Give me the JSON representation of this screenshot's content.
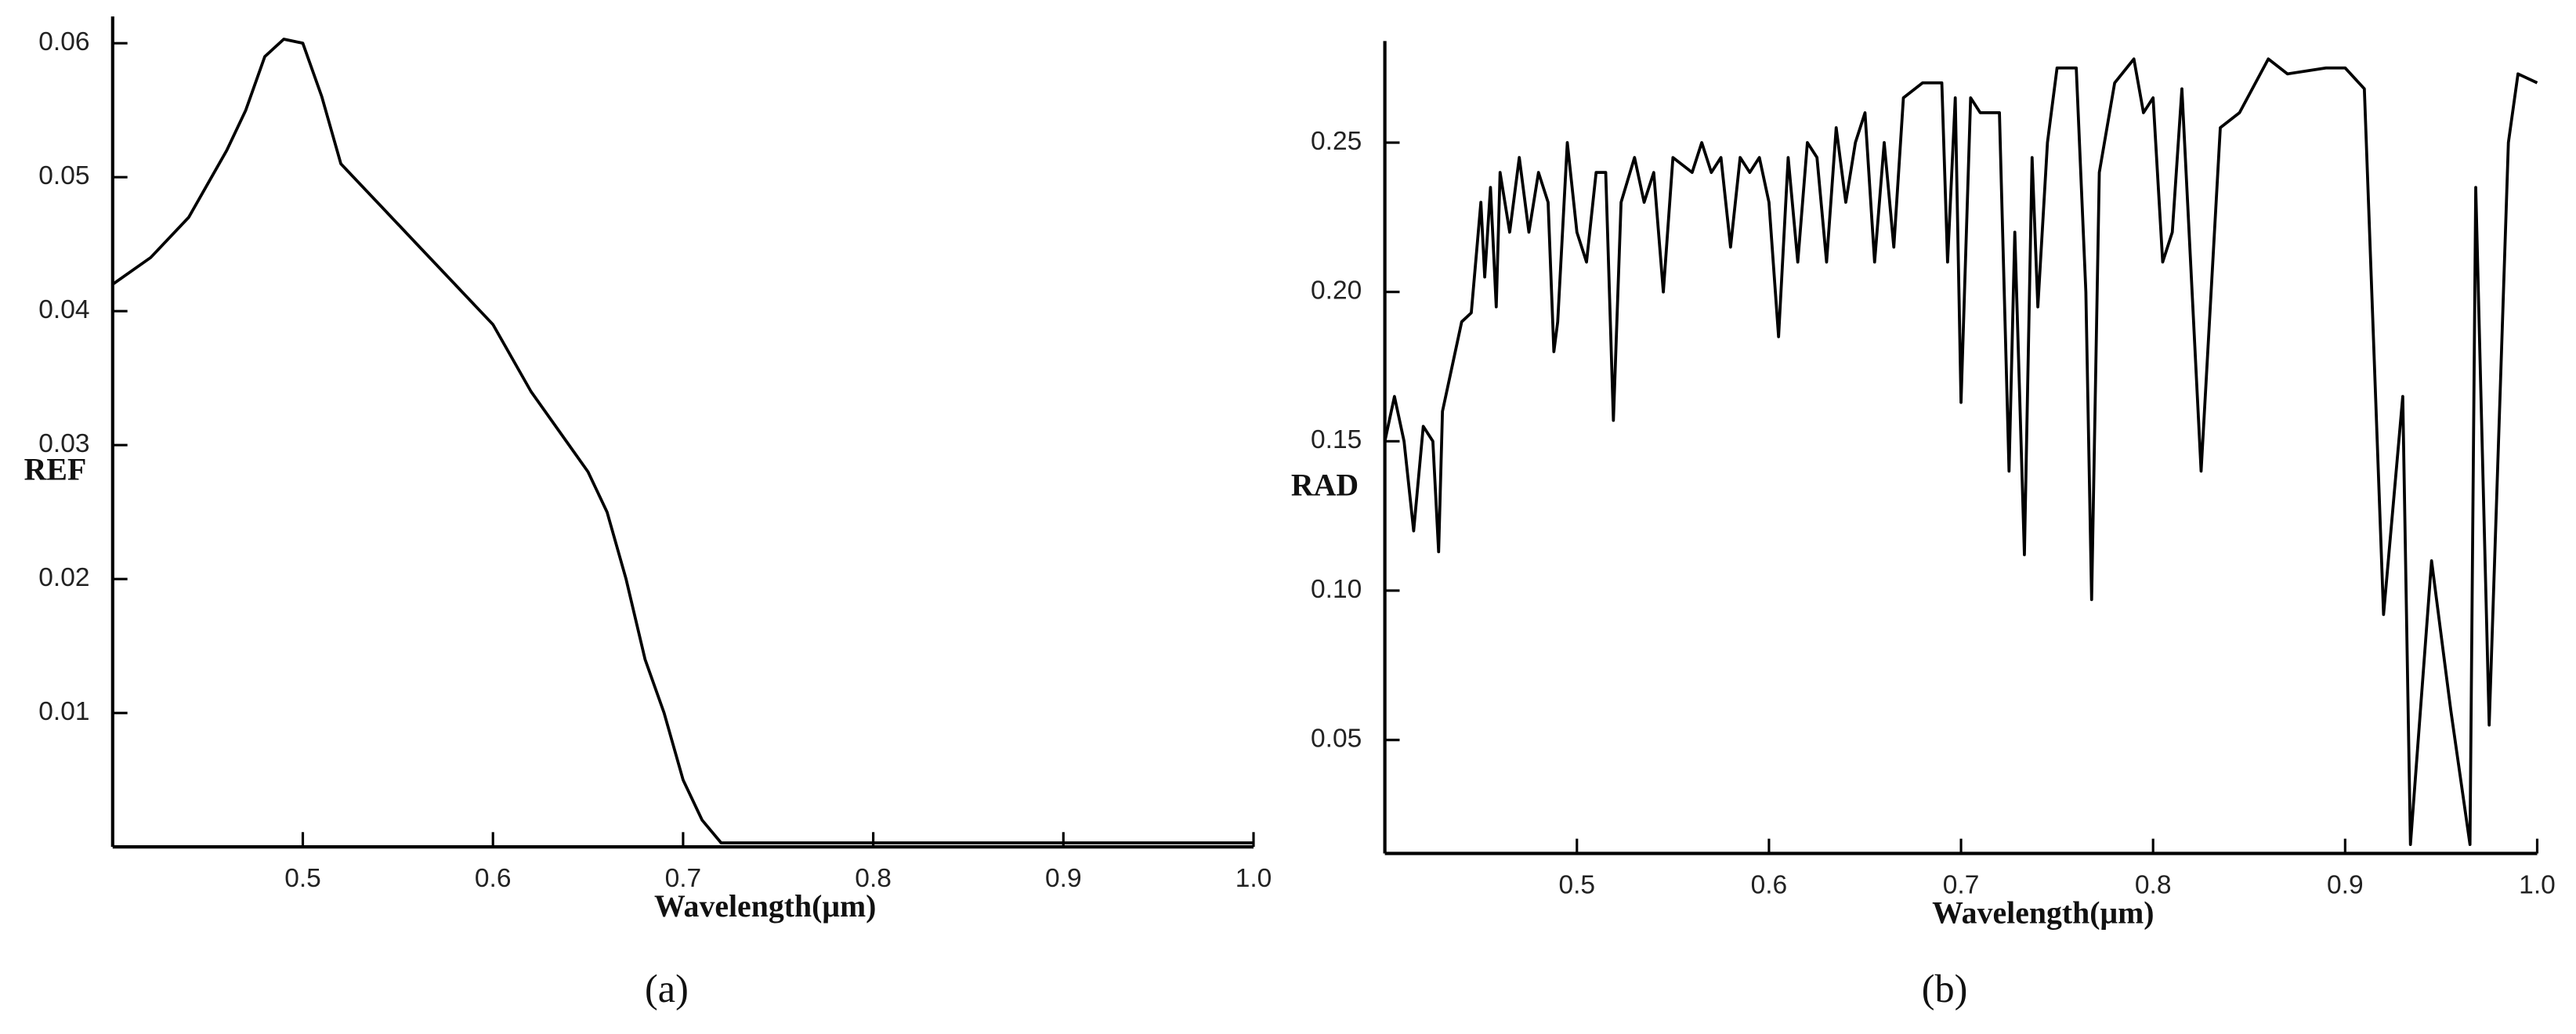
{
  "chart_data": [
    {
      "type": "line",
      "caption": "(a)",
      "x_label": "Wavelength(μm)",
      "y_label": "REF",
      "color": "#000000",
      "x": [
        0.4,
        0.42,
        0.44,
        0.46,
        0.47,
        0.48,
        0.49,
        0.5,
        0.51,
        0.52,
        0.54,
        0.56,
        0.58,
        0.6,
        0.62,
        0.64,
        0.65,
        0.66,
        0.67,
        0.68,
        0.69,
        0.7,
        0.71,
        0.72,
        0.8,
        1.0
      ],
      "values": [
        0.042,
        0.044,
        0.047,
        0.052,
        0.055,
        0.059,
        0.0603,
        0.06,
        0.056,
        0.051,
        0.048,
        0.045,
        0.042,
        0.039,
        0.034,
        0.03,
        0.028,
        0.025,
        0.02,
        0.014,
        0.01,
        0.005,
        0.002,
        0.0003,
        0.0003,
        0.0003
      ],
      "xlim": [
        0.4,
        1.0
      ],
      "ylim": [
        0,
        0.062
      ],
      "xticks": [
        0.5,
        0.6,
        0.7,
        0.8,
        0.9,
        {
          "value": 1.0,
          "label": "1.0"
        }
      ],
      "yticks": [
        0.01,
        0.02,
        0.03,
        0.04,
        0.05,
        0.06
      ]
    },
    {
      "type": "line",
      "caption": "(b)",
      "x_label": "Wavelength(μm)",
      "y_label": "RAD",
      "color": "#000000",
      "x": [
        0.4,
        0.405,
        0.41,
        0.415,
        0.42,
        0.425,
        0.428,
        0.43,
        0.44,
        0.445,
        0.45,
        0.452,
        0.455,
        0.458,
        0.46,
        0.465,
        0.47,
        0.475,
        0.48,
        0.485,
        0.488,
        0.49,
        0.495,
        0.5,
        0.505,
        0.51,
        0.515,
        0.519,
        0.523,
        0.53,
        0.535,
        0.54,
        0.545,
        0.55,
        0.56,
        0.565,
        0.57,
        0.575,
        0.58,
        0.585,
        0.59,
        0.595,
        0.6,
        0.605,
        0.61,
        0.615,
        0.62,
        0.625,
        0.63,
        0.635,
        0.64,
        0.645,
        0.65,
        0.655,
        0.66,
        0.665,
        0.67,
        0.68,
        0.69,
        0.693,
        0.697,
        0.7,
        0.705,
        0.71,
        0.72,
        0.725,
        0.728,
        0.733,
        0.737,
        0.74,
        0.745,
        0.75,
        0.76,
        0.765,
        0.768,
        0.772,
        0.78,
        0.79,
        0.795,
        0.8,
        0.805,
        0.81,
        0.815,
        0.825,
        0.835,
        0.845,
        0.86,
        0.87,
        0.89,
        0.9,
        0.91,
        0.92,
        0.93,
        0.934,
        0.945,
        0.955,
        0.965,
        0.968,
        0.975,
        0.985,
        0.99,
        1.0
      ],
      "values": [
        0.15,
        0.165,
        0.15,
        0.12,
        0.155,
        0.15,
        0.113,
        0.16,
        0.19,
        0.193,
        0.23,
        0.205,
        0.235,
        0.195,
        0.24,
        0.22,
        0.245,
        0.22,
        0.24,
        0.23,
        0.18,
        0.19,
        0.25,
        0.22,
        0.21,
        0.24,
        0.24,
        0.157,
        0.23,
        0.245,
        0.23,
        0.24,
        0.2,
        0.245,
        0.24,
        0.25,
        0.24,
        0.245,
        0.215,
        0.245,
        0.24,
        0.245,
        0.23,
        0.185,
        0.245,
        0.21,
        0.25,
        0.245,
        0.21,
        0.255,
        0.23,
        0.25,
        0.26,
        0.21,
        0.25,
        0.215,
        0.265,
        0.27,
        0.27,
        0.21,
        0.265,
        0.163,
        0.265,
        0.26,
        0.26,
        0.14,
        0.22,
        0.112,
        0.245,
        0.195,
        0.25,
        0.275,
        0.275,
        0.2,
        0.097,
        0.24,
        0.27,
        0.278,
        0.26,
        0.265,
        0.21,
        0.22,
        0.268,
        0.14,
        0.255,
        0.26,
        0.278,
        0.273,
        0.275,
        0.275,
        0.268,
        0.092,
        0.165,
        0.015,
        0.11,
        0.06,
        0.015,
        0.235,
        0.055,
        0.25,
        0.273,
        0.27
      ],
      "xlim": [
        0.4,
        1.0
      ],
      "ylim": [
        0.012,
        0.284
      ],
      "xticks": [
        0.5,
        0.6,
        0.7,
        0.8,
        0.9,
        {
          "value": 1.0,
          "label": "1.0"
        }
      ],
      "yticks": [
        0.05,
        {
          "value": 0.1,
          "label": "0.10"
        },
        0.15,
        {
          "value": 0.2,
          "label": "0.20"
        },
        0.25
      ]
    }
  ]
}
